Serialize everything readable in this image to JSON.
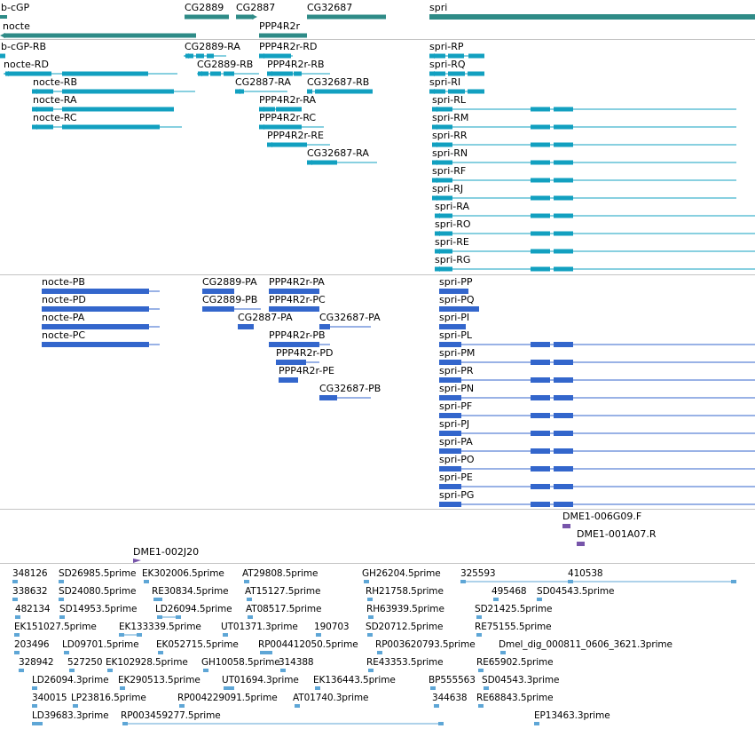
{
  "colors": {
    "gene": "#2e8b87",
    "transcript": "#12a0c0",
    "protein": "#3366cc",
    "probe": "#7755aa",
    "est": "#5ea6d6",
    "separator": "#c4c4c4"
  },
  "tracks": {
    "genes": [
      "b-cGP",
      "CG2889",
      "CG2887",
      "CG32687",
      "spri",
      "nocte",
      "PPP4R2r"
    ],
    "transcripts": [
      "b-cGP-RB",
      "CG2889-RA",
      "PPP4R2r-RD",
      "spri-RP",
      "nocte-RD",
      "CG2889-RB",
      "PPP4R2r-RB",
      "spri-RQ",
      "nocte-RB",
      "CG2887-RA",
      "CG32687-RB",
      "spri-RI",
      "nocte-RA",
      "PPP4R2r-RA",
      "spri-RL",
      "nocte-RC",
      "PPP4R2r-RC",
      "spri-RM",
      "PPP4R2r-RE",
      "spri-RR",
      "CG32687-RA",
      "spri-RN",
      "spri-RF",
      "spri-RJ",
      "spri-RA",
      "spri-RO",
      "spri-RE",
      "spri-RG"
    ],
    "proteins": [
      "nocte-PB",
      "CG2889-PA",
      "PPP4R2r-PA",
      "spri-PP",
      "nocte-PD",
      "CG2889-PB",
      "PPP4R2r-PC",
      "spri-PQ",
      "nocte-PA",
      "CG2887-PA",
      "CG32687-PA",
      "spri-PI",
      "nocte-PC",
      "PPP4R2r-PB",
      "spri-PL",
      "PPP4R2r-PD",
      "spri-PM",
      "PPP4R2r-PE",
      "spri-PR",
      "CG32687-PB",
      "spri-PN",
      "spri-PF",
      "spri-PJ",
      "spri-PA",
      "spri-PO",
      "spri-PE",
      "spri-PG"
    ],
    "probes": [
      "DME1-006G09.F",
      "DME1-001A07.R",
      "DME1-002J20"
    ],
    "ests": [
      "348126",
      "SD26985.5prime",
      "EK302006.5prime",
      "AT29808.5prime",
      "GH26204.5prime",
      "325593",
      "410538",
      "338632",
      "SD24080.5prime",
      "RE30834.5prime",
      "AT15127.5prime",
      "RH21758.5prime",
      "495468",
      "SD04543.5prime",
      "482134",
      "SD14953.5prime",
      "LD26094.5prime",
      "AT08517.5prime",
      "RH63939.5prime",
      "SD21425.5prime",
      "EK151027.5prime",
      "EK133339.5prime",
      "UT01371.3prime",
      "190703",
      "SD20712.5prime",
      "RE75155.5prime",
      "203496",
      "LD09701.5prime",
      "EK052715.5prime",
      "RP004412050.5prime",
      "RP003620793.5prime",
      "Dmel_dig_000811_0606_3621.3prime",
      "328942",
      "527250",
      "EK102928.5prime",
      "GH10058.5prime",
      "314388",
      "RE43353.5prime",
      "RE65902.5prime",
      "LD26094.3prime",
      "EK290513.5prime",
      "UT01694.3prime",
      "EK136443.5prime",
      "BP555563",
      "SD04543.3prime",
      "340015",
      "LP23816.5prime",
      "RP004229091.5prime",
      "AT01740.3prime",
      "344638",
      "RE68843.5prime",
      "LD39683.3prime",
      "RP003459277.5prime",
      "EP13463.3prime"
    ]
  }
}
